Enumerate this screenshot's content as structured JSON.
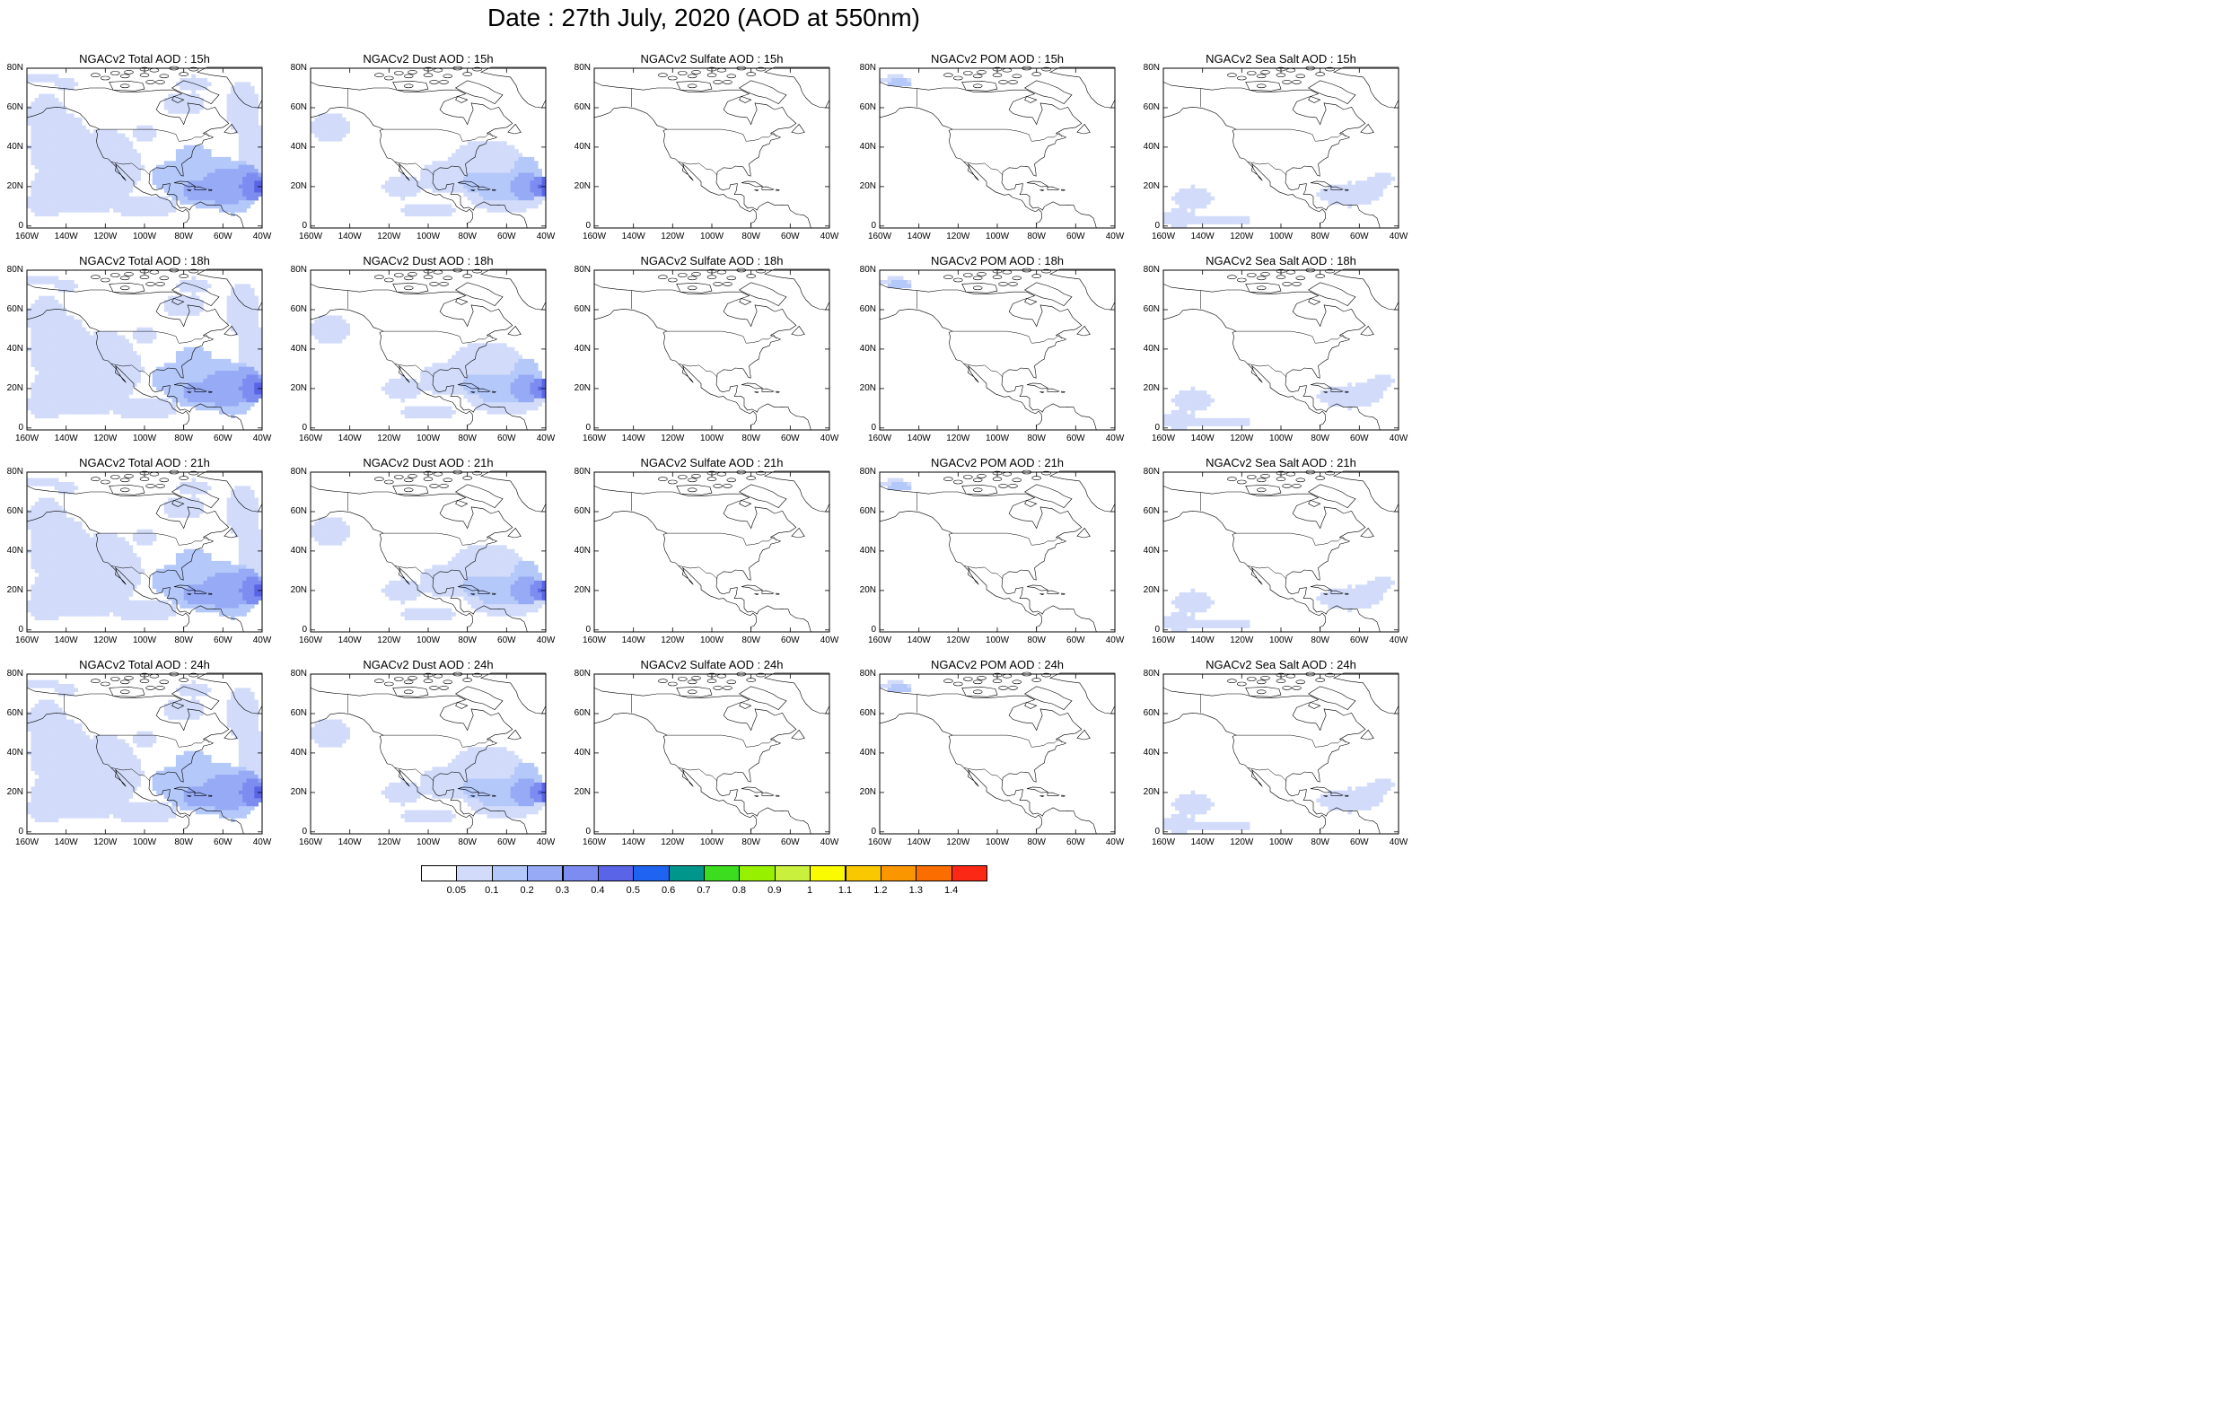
{
  "title": "Date : 27th July, 2020 (AOD at 550nm)",
  "panel_titles": [
    [
      "NGACv2 Total AOD : 15h",
      "NGACv2 Dust AOD : 15h",
      "NGACv2 Sulfate AOD : 15h",
      "NGACv2 POM AOD : 15h",
      "NGACv2 Sea Salt AOD : 15h"
    ],
    [
      "NGACv2 Total AOD : 18h",
      "NGACv2 Dust AOD : 18h",
      "NGACv2 Sulfate AOD : 18h",
      "NGACv2 POM AOD : 18h",
      "NGACv2 Sea Salt AOD : 18h"
    ],
    [
      "NGACv2 Total AOD : 21h",
      "NGACv2 Dust AOD : 21h",
      "NGACv2 Sulfate AOD : 21h",
      "NGACv2 POM AOD : 21h",
      "NGACv2 Sea Salt AOD : 21h"
    ],
    [
      "NGACv2 Total AOD : 24h",
      "NGACv2 Dust AOD : 24h",
      "NGACv2 Sulfate AOD : 24h",
      "NGACv2 POM AOD : 24h",
      "NGACv2 Sea Salt  AOD : 24h"
    ]
  ],
  "y_tick_labels": [
    "80N",
    "60N",
    "40N",
    "20N",
    "0"
  ],
  "x_tick_labels": [
    "160W",
    "140W",
    "120W",
    "100W",
    "80W",
    "60W",
    "40W"
  ],
  "colorbar": {
    "colors": [
      "#ffffff",
      "#d2dcfa",
      "#b4c8fa",
      "#96aaf5",
      "#7d8cf0",
      "#5a64e6",
      "#1e64f0",
      "#00968c",
      "#3cdc1e",
      "#96f000",
      "#c8f03c",
      "#fafa00",
      "#fac800",
      "#fa9600",
      "#fa6e00",
      "#fa2814"
    ],
    "labels": [
      "0.05",
      "0.1",
      "0.2",
      "0.3",
      "0.4",
      "0.5",
      "0.6",
      "0.7",
      "0.8",
      "0.9",
      "1",
      "1.1",
      "1.2",
      "1.3",
      "1.4"
    ]
  }
}
